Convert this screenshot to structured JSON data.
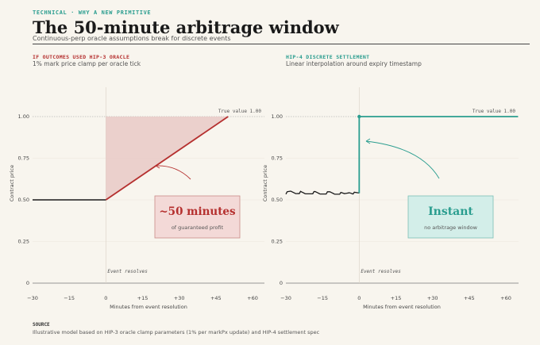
{
  "header": {
    "kicker": "TECHNICAL · WHY A NEW PRIMITIVE",
    "title": "The 50-minute arbitrage window",
    "subtitle": "Continuous-perp oracle assumptions break for discrete events"
  },
  "colors": {
    "accent_red": "#b5302f",
    "accent_teal": "#2a9d8f",
    "background": "#f8f5ee"
  },
  "panels": {
    "left": {
      "heading": "IF OUTCOMES USED HIP-3 ORACLE",
      "subheading": "1% mark price clamp per oracle tick",
      "callout_title": "~50 minutes",
      "callout_text": "of guaranteed profit"
    },
    "right": {
      "heading": "HIP-4 DISCRETE SETTLEMENT",
      "subheading": "Linear interpolation around expiry timestamp",
      "callout_title": "Instant",
      "callout_text": "no arbitrage window"
    }
  },
  "source": {
    "label": "SOURCE",
    "text": "Illustrative model based on HIP-3 oracle clamp parameters (1% per markPx update) and HIP-4 settlement spec"
  },
  "chart_data": [
    {
      "type": "line",
      "xlabel": "Minutes from event resolution",
      "ylabel": "Contract price",
      "xlim": [
        -30,
        65
      ],
      "ylim": [
        0,
        1.15
      ],
      "x_ticks": [
        "−30",
        "−15",
        "0",
        "+15",
        "+30",
        "+45",
        "+60"
      ],
      "x_tick_values": [
        -30,
        -15,
        0,
        15,
        30,
        45,
        60
      ],
      "y_ticks": [
        "0",
        "0.25",
        "0.50",
        "0.75",
        "1.00"
      ],
      "y_tick_values": [
        0,
        0.25,
        0.5,
        0.75,
        1.0
      ],
      "reference_line": {
        "value": 1.0,
        "label": "True value 1.00"
      },
      "event_marker": {
        "x": 0,
        "label": "Event resolves"
      },
      "series": [
        {
          "x": [
            -30,
            0,
            50
          ],
          "y": [
            0.5,
            0.5,
            1.0
          ]
        }
      ],
      "shaded_region": {
        "x": [
          0,
          50
        ],
        "from_y": "series",
        "to_y": 1.0
      }
    },
    {
      "type": "line",
      "xlabel": "Minutes from event resolution",
      "ylabel": "Contract price",
      "xlim": [
        -30,
        65
      ],
      "ylim": [
        0,
        1.15
      ],
      "x_ticks": [
        "−30",
        "−15",
        "0",
        "+15",
        "+30",
        "+45",
        "+60"
      ],
      "x_tick_values": [
        -30,
        -15,
        0,
        15,
        30,
        45,
        60
      ],
      "y_ticks": [
        "0",
        "0.25",
        "0.50",
        "0.75",
        "1.00"
      ],
      "y_tick_values": [
        0,
        0.25,
        0.5,
        0.75,
        1.0
      ],
      "reference_line": {
        "value": 1.0,
        "label": "True value 1.00"
      },
      "event_marker": {
        "x": 0,
        "label": "Event resolves"
      },
      "series": [
        {
          "x": [
            -30,
            -28,
            -26,
            -24,
            -22,
            -20,
            -18,
            -16,
            -14,
            -12,
            -10,
            -8,
            -6,
            -4,
            -2,
            0,
            0,
            65
          ],
          "y": [
            0.54,
            0.55,
            0.54,
            0.545,
            0.535,
            0.54,
            0.545,
            0.535,
            0.54,
            0.545,
            0.535,
            0.54,
            0.535,
            0.545,
            0.54,
            0.54,
            1.0,
            1.0
          ]
        }
      ]
    }
  ]
}
